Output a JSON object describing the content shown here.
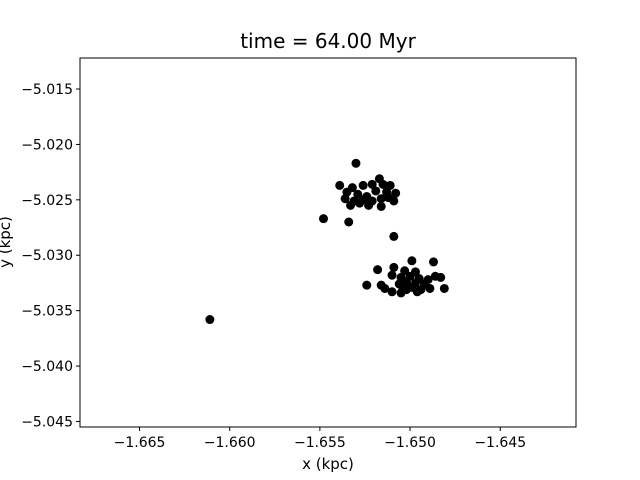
{
  "chart_data": {
    "type": "scatter",
    "title": "time = 64.00 Myr",
    "xlabel": "x (kpc)",
    "ylabel": "y (kpc)",
    "xlim": [
      -1.6683,
      -1.6408
    ],
    "ylim": [
      -5.0455,
      -5.0122
    ],
    "xticks": [
      -1.665,
      -1.66,
      -1.655,
      -1.65,
      -1.645
    ],
    "xtick_labels": [
      "−1.665",
      "−1.660",
      "−1.655",
      "−1.650",
      "−1.645"
    ],
    "yticks": [
      -5.015,
      -5.02,
      -5.025,
      -5.03,
      -5.035,
      -5.04,
      -5.045
    ],
    "ytick_labels": [
      "−5.015",
      "−5.020",
      "−5.025",
      "−5.030",
      "−5.035",
      "−5.040",
      "−5.045"
    ],
    "grid": false,
    "marker_color": "#000000",
    "series": [
      {
        "points": [
          [
            -1.653,
            -5.0217
          ],
          [
            -1.6539,
            -5.0237
          ],
          [
            -1.6532,
            -5.0239
          ],
          [
            -1.6526,
            -5.0237
          ],
          [
            -1.6521,
            -5.0236
          ],
          [
            -1.6517,
            -5.0231
          ],
          [
            -1.6515,
            -5.0236
          ],
          [
            -1.6511,
            -5.0237
          ],
          [
            -1.6508,
            -5.0244
          ],
          [
            -1.6535,
            -5.0243
          ],
          [
            -1.6529,
            -5.0245
          ],
          [
            -1.6524,
            -5.0247
          ],
          [
            -1.6519,
            -5.0242
          ],
          [
            -1.6513,
            -5.0243
          ],
          [
            -1.6536,
            -5.0249
          ],
          [
            -1.6531,
            -5.0251
          ],
          [
            -1.6526,
            -5.025
          ],
          [
            -1.6521,
            -5.0251
          ],
          [
            -1.6516,
            -5.0249
          ],
          [
            -1.6512,
            -5.0248
          ],
          [
            -1.6533,
            -5.0255
          ],
          [
            -1.6528,
            -5.0253
          ],
          [
            -1.6523,
            -5.0255
          ],
          [
            -1.6516,
            -5.0256
          ],
          [
            -1.6509,
            -5.0251
          ],
          [
            -1.6534,
            -5.027
          ],
          [
            -1.6548,
            -5.0267
          ],
          [
            -1.6509,
            -5.0283
          ],
          [
            -1.6518,
            -5.0313
          ],
          [
            -1.6509,
            -5.0311
          ],
          [
            -1.6503,
            -5.0314
          ],
          [
            -1.6499,
            -5.0305
          ],
          [
            -1.6497,
            -5.0315
          ],
          [
            -1.6487,
            -5.0306
          ],
          [
            -1.651,
            -5.0318
          ],
          [
            -1.6505,
            -5.032
          ],
          [
            -1.65,
            -5.0319
          ],
          [
            -1.6495,
            -5.0321
          ],
          [
            -1.649,
            -5.0322
          ],
          [
            -1.6486,
            -5.0319
          ],
          [
            -1.6483,
            -5.032
          ],
          [
            -1.6502,
            -5.0324
          ],
          [
            -1.6497,
            -5.0325
          ],
          [
            -1.6492,
            -5.0326
          ],
          [
            -1.6506,
            -5.0326
          ],
          [
            -1.6524,
            -5.0327
          ],
          [
            -1.6516,
            -5.0327
          ],
          [
            -1.6504,
            -5.0329
          ],
          [
            -1.6499,
            -5.0329
          ],
          [
            -1.6494,
            -5.0331
          ],
          [
            -1.6489,
            -5.033
          ],
          [
            -1.6514,
            -5.033
          ],
          [
            -1.651,
            -5.0333
          ],
          [
            -1.6505,
            -5.0334
          ],
          [
            -1.6502,
            -5.0331
          ],
          [
            -1.6496,
            -5.0333
          ],
          [
            -1.6481,
            -5.033
          ],
          [
            -1.6611,
            -5.0358
          ]
        ]
      }
    ]
  }
}
